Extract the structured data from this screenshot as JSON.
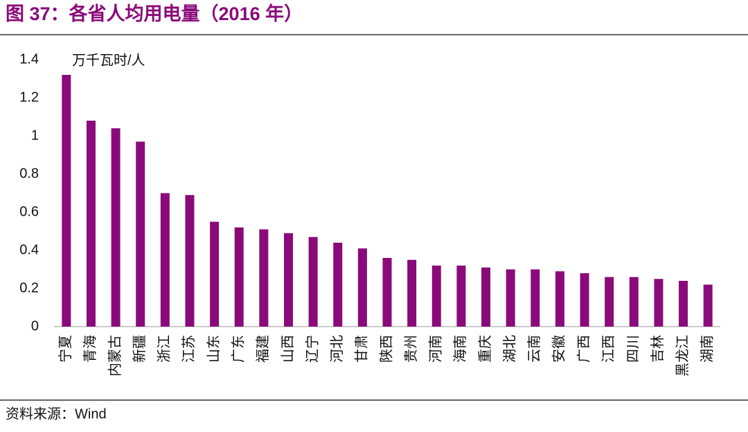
{
  "chart_data": {
    "type": "bar",
    "title": "图 37：各省人均用电量（2016 年）",
    "unit_label": "万千瓦时/人",
    "source": "资料来源：Wind",
    "categories": [
      "宁夏",
      "青海",
      "内蒙古",
      "新疆",
      "浙江",
      "江苏",
      "山东",
      "广东",
      "福建",
      "山西",
      "辽宁",
      "河北",
      "甘肃",
      "陕西",
      "贵州",
      "河南",
      "海南",
      "重庆",
      "湖北",
      "云南",
      "安徽",
      "广西",
      "江西",
      "四川",
      "吉林",
      "黑龙江",
      "湖南"
    ],
    "values": [
      1.32,
      1.08,
      1.04,
      0.97,
      0.7,
      0.69,
      0.55,
      0.52,
      0.51,
      0.49,
      0.47,
      0.44,
      0.41,
      0.36,
      0.35,
      0.32,
      0.32,
      0.31,
      0.3,
      0.3,
      0.29,
      0.28,
      0.26,
      0.26,
      0.25,
      0.24,
      0.22
    ],
    "color": "#8b0a7a",
    "ylim": [
      0,
      1.4
    ],
    "yticks": [
      0,
      0.2,
      0.4,
      0.6,
      0.8,
      1,
      1.2,
      1.4
    ],
    "grid": false
  }
}
